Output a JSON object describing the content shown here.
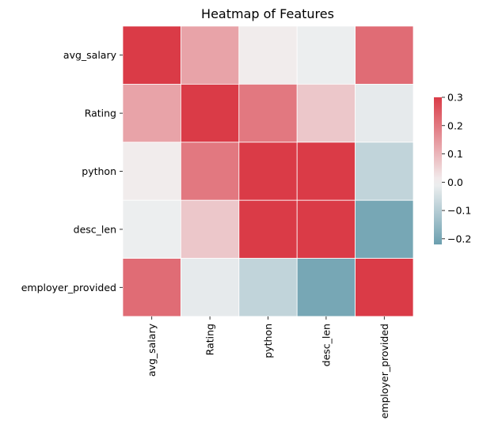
{
  "chart_data": {
    "type": "heatmap",
    "title": "Heatmap of Features",
    "rows": [
      "avg_salary",
      "Rating",
      "python",
      "desc_len",
      "employer_provided"
    ],
    "columns": [
      "avg_salary",
      "Rating",
      "python",
      "desc_len",
      "employer_provided"
    ],
    "values": [
      [
        1.0,
        0.13,
        0.01,
        -0.01,
        0.22
      ],
      [
        0.13,
        1.0,
        0.2,
        0.07,
        -0.02
      ],
      [
        0.01,
        0.2,
        1.0,
        0.45,
        -0.08
      ],
      [
        -0.01,
        0.07,
        0.45,
        1.0,
        -0.2
      ],
      [
        0.22,
        -0.02,
        -0.08,
        -0.2,
        1.0
      ]
    ],
    "colorbar": {
      "vmin": -0.22,
      "vmax": 0.3,
      "ticks": [
        0.3,
        0.2,
        0.1,
        0.0,
        -0.1,
        -0.2
      ],
      "tick_labels": [
        "0.3",
        "0.2",
        "0.1",
        "0.0",
        "−0.1",
        "−0.2"
      ]
    },
    "colors": {
      "negative": "#6b9faf",
      "center": "#f2f2f2",
      "positive": "#da3b47",
      "gridline": "#ffffff"
    },
    "xlabel": "",
    "ylabel": ""
  }
}
